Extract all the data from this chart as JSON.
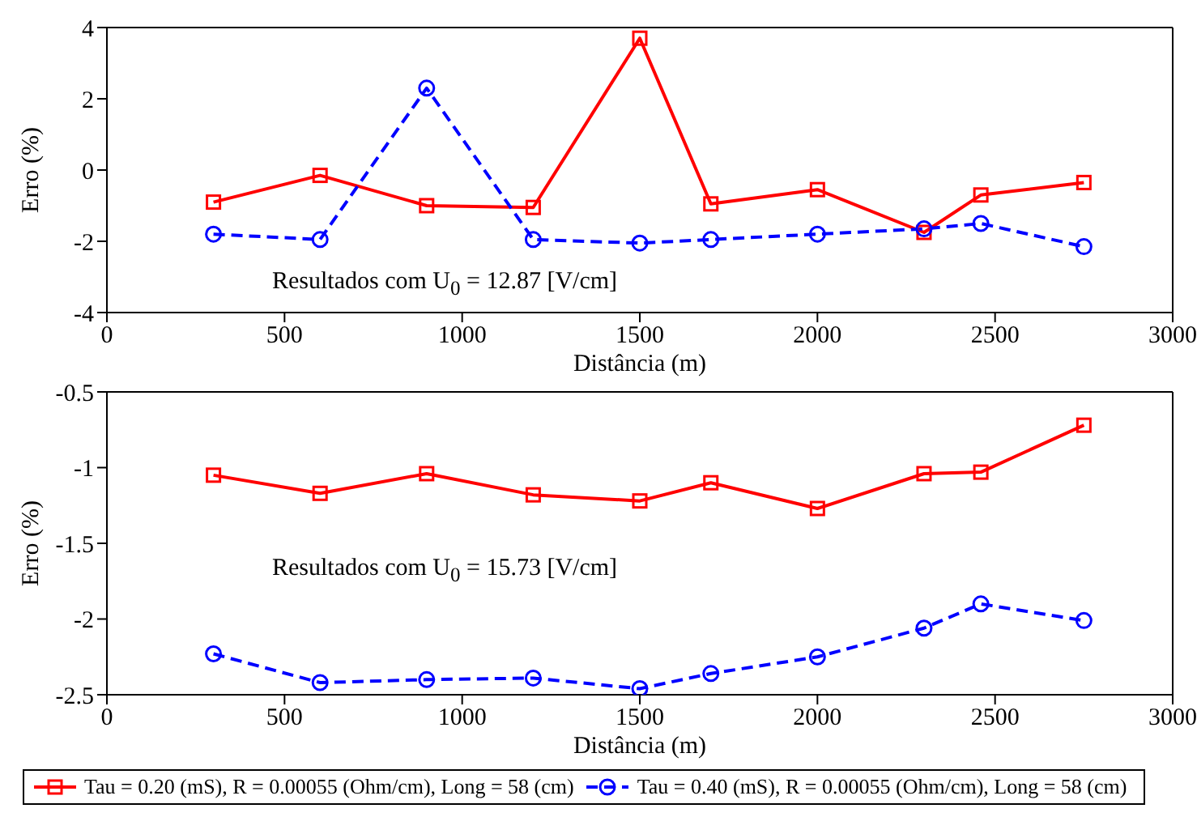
{
  "chart_data": [
    {
      "type": "line",
      "xlabel": "Distância (m)",
      "ylabel": "Erro (%)",
      "x": [
        300,
        600,
        900,
        1200,
        1500,
        1700,
        2000,
        2300,
        2460,
        2750
      ],
      "xlim": [
        0,
        3000
      ],
      "xticks": [
        0,
        500,
        1000,
        1500,
        2000,
        2500,
        3000
      ],
      "ylim": [
        -4,
        4
      ],
      "yticks": [
        -4,
        -2,
        0,
        2,
        4
      ],
      "grid": false,
      "legend": false,
      "annotations": [
        "Resultados com U$_{0}$ = 12.87 [V/cm]"
      ],
      "series": [
        {
          "color": "#ff0000",
          "marker": "square",
          "line_style": "solid",
          "values": [
            -0.9,
            -0.15,
            -1.0,
            -1.05,
            3.7,
            -0.95,
            -0.55,
            -1.75,
            -0.7,
            -0.35
          ]
        },
        {
          "color": "#0000ff",
          "marker": "circle",
          "line_style": "dashed",
          "values": [
            -1.8,
            -1.95,
            2.3,
            -1.95,
            -2.05,
            -1.95,
            -1.8,
            -1.65,
            -1.5,
            -2.15
          ]
        }
      ]
    },
    {
      "type": "line",
      "xlabel": "Distância (m)",
      "ylabel": "Erro (%)",
      "x": [
        300,
        600,
        900,
        1200,
        1500,
        1700,
        2000,
        2300,
        2460,
        2750
      ],
      "xlim": [
        0,
        3000
      ],
      "xticks": [
        0,
        500,
        1000,
        1500,
        2000,
        2500,
        3000
      ],
      "ylim": [
        -2.5,
        -0.5
      ],
      "yticks": [
        -2.5,
        -2,
        -1.5,
        -1,
        -0.5
      ],
      "grid": false,
      "legend": "bottom",
      "annotations": [
        "Resultados com U$_{0}$ = 15.73 [V/cm]"
      ],
      "series": [
        {
          "name": "Tau = 0.20 (mS), R = 0.00055 (Ohm/cm), Long = 58 (cm)",
          "color": "#ff0000",
          "marker": "square",
          "line_style": "solid",
          "values": [
            -1.05,
            -1.17,
            -1.04,
            -1.18,
            -1.22,
            -1.1,
            -1.27,
            -1.04,
            -1.03,
            -0.72
          ]
        },
        {
          "name": "Tau = 0.40 (mS), R = 0.00055 (Ohm/cm), Long = 58 (cm)",
          "color": "#0000ff",
          "marker": "circle",
          "line_style": "dashed",
          "values": [
            -2.23,
            -2.42,
            -2.4,
            -2.39,
            -2.46,
            -2.36,
            -2.25,
            -2.06,
            -1.9,
            -2.01
          ]
        }
      ]
    }
  ]
}
